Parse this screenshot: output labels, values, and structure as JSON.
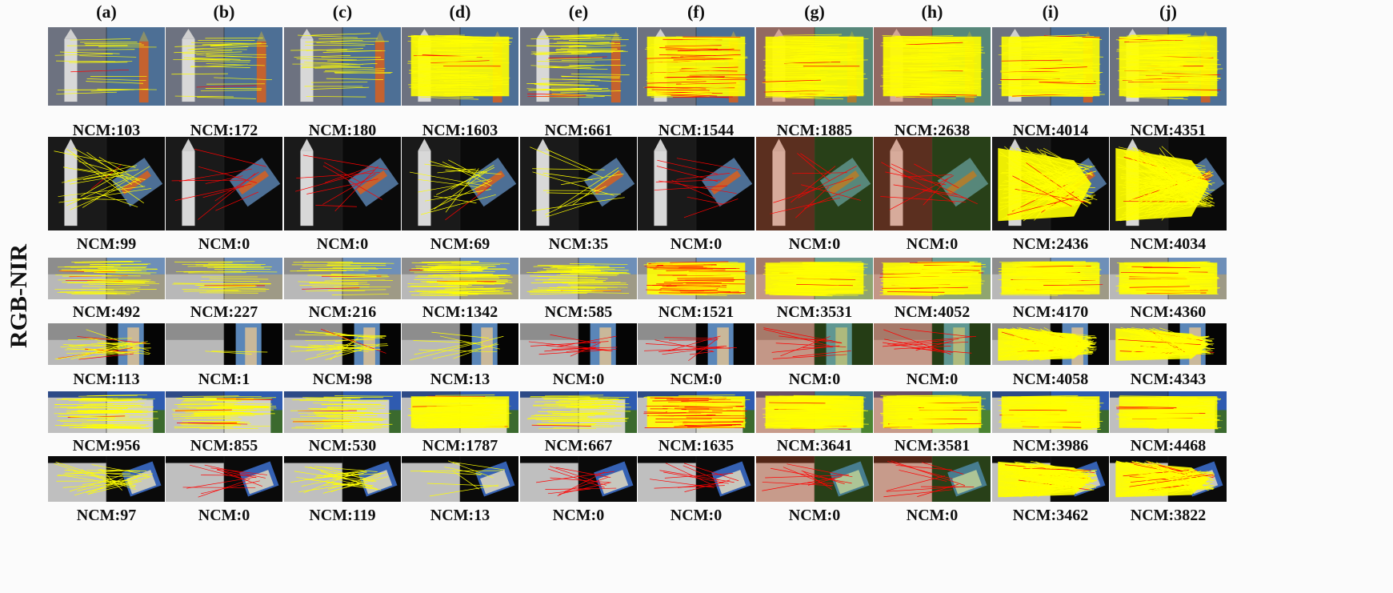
{
  "figure": {
    "row_label": "RGB-NIR",
    "columns": [
      "(a)",
      "(b)",
      "(c)",
      "(d)",
      "(e)",
      "(f)",
      "(g)",
      "(h)",
      "(i)",
      "(j)"
    ],
    "rows": [
      {
        "scene": "tower",
        "rotated": false,
        "ncm": [
          "NCM:103",
          "NCM:172",
          "NCM:180",
          "NCM:1603",
          "NCM:661",
          "NCM:1544",
          "NCM:1885",
          "NCM:2638",
          "NCM:4014",
          "NCM:4351"
        ]
      },
      {
        "scene": "tower",
        "rotated": true,
        "ncm": [
          "NCM:99",
          "NCM:0",
          "NCM:0",
          "NCM:69",
          "NCM:35",
          "NCM:0",
          "NCM:0",
          "NCM:0",
          "NCM:2436",
          "NCM:4034"
        ]
      },
      {
        "scene": "town",
        "rotated": false,
        "ncm": [
          "NCM:492",
          "NCM:227",
          "NCM:216",
          "NCM:1342",
          "NCM:585",
          "NCM:1521",
          "NCM:3531",
          "NCM:4052",
          "NCM:4170",
          "NCM:4360"
        ]
      },
      {
        "scene": "town",
        "rotated": true,
        "ncm": [
          "NCM:113",
          "NCM:1",
          "NCM:98",
          "NCM:13",
          "NCM:0",
          "NCM:0",
          "NCM:0",
          "NCM:0",
          "NCM:4058",
          "NCM:4343"
        ]
      },
      {
        "scene": "building",
        "rotated": false,
        "ncm": [
          "NCM:956",
          "NCM:855",
          "NCM:530",
          "NCM:1787",
          "NCM:667",
          "NCM:1635",
          "NCM:3641",
          "NCM:3581",
          "NCM:3986",
          "NCM:4468"
        ]
      },
      {
        "scene": "building",
        "rotated": true,
        "ncm": [
          "NCM:97",
          "NCM:0",
          "NCM:119",
          "NCM:13",
          "NCM:0",
          "NCM:0",
          "NCM:0",
          "NCM:0",
          "NCM:3462",
          "NCM:3822"
        ]
      }
    ],
    "colors": {
      "correct_match": "#ffff00",
      "wrong_match": "#ff0000",
      "sky": "#4d6f95",
      "tower_brick": "#c4622f",
      "background": "#fbfbfb"
    }
  }
}
